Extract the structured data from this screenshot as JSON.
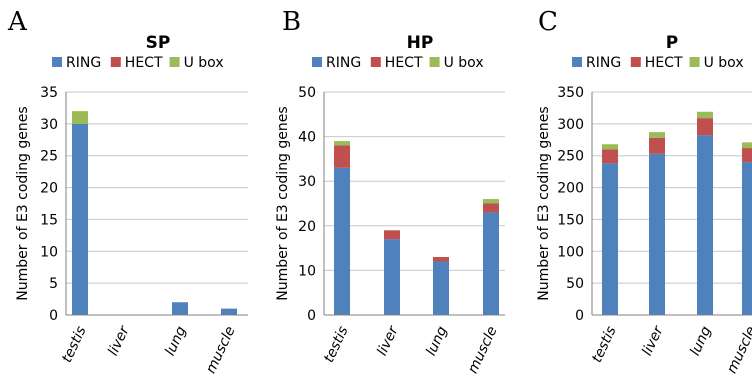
{
  "colors": {
    "RING": "#4f81bd",
    "HECT": "#c0504d",
    "U box": "#9bbb59",
    "grid": "#c8c8c8",
    "axis": "#808080"
  },
  "chart_data": [
    {
      "panel": "A",
      "type": "bar",
      "stacked": true,
      "title": "SP",
      "xlabel": "",
      "ylabel": "Number of E3 coding genes",
      "categories": [
        "testis",
        "liver",
        "lung",
        "muscle"
      ],
      "series": [
        {
          "name": "RING",
          "values": [
            30,
            0,
            2,
            1
          ]
        },
        {
          "name": "HECT",
          "values": [
            0,
            0,
            0,
            0
          ]
        },
        {
          "name": "U box",
          "values": [
            2,
            0,
            0,
            0
          ]
        }
      ],
      "ylim": [
        0,
        35
      ],
      "yticks": [
        0,
        5,
        10,
        15,
        20,
        25,
        30,
        35
      ],
      "grid": true,
      "legend": "top"
    },
    {
      "panel": "B",
      "type": "bar",
      "stacked": true,
      "title": "HP",
      "xlabel": "",
      "ylabel": "Number of E3 coding genes",
      "categories": [
        "testis",
        "liver",
        "lung",
        "muscle"
      ],
      "series": [
        {
          "name": "RING",
          "values": [
            33,
            17,
            12,
            23
          ]
        },
        {
          "name": "HECT",
          "values": [
            5,
            2,
            1,
            2
          ]
        },
        {
          "name": "U box",
          "values": [
            1,
            0,
            0,
            1
          ]
        }
      ],
      "ylim": [
        0,
        50
      ],
      "yticks": [
        0,
        10,
        20,
        30,
        40,
        50
      ],
      "grid": true,
      "legend": "top"
    },
    {
      "panel": "C",
      "type": "bar",
      "stacked": true,
      "title": "P",
      "xlabel": "",
      "ylabel": "Number of E3 coding genes",
      "categories": [
        "testis",
        "liver",
        "lung",
        "muscle"
      ],
      "series": [
        {
          "name": "RING",
          "values": [
            238,
            253,
            282,
            240
          ]
        },
        {
          "name": "HECT",
          "values": [
            22,
            25,
            27,
            22
          ]
        },
        {
          "name": "U box",
          "values": [
            8,
            9,
            10,
            9
          ]
        }
      ],
      "ylim": [
        0,
        350
      ],
      "yticks": [
        0,
        50,
        100,
        150,
        200,
        250,
        300,
        350
      ],
      "grid": true,
      "legend": "top"
    }
  ]
}
